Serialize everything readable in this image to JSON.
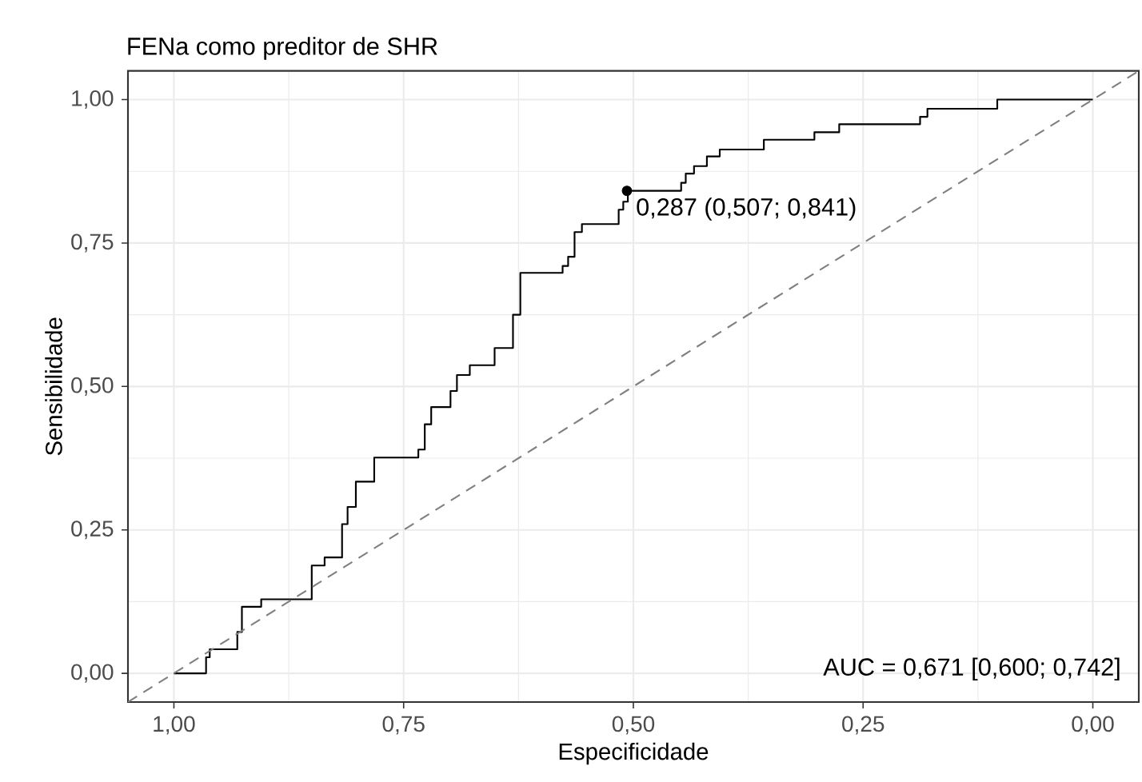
{
  "chart_data": {
    "type": "line",
    "title": "FENa como preditor de SHR",
    "xlabel": "Especificidade",
    "ylabel": "Sensibilidade",
    "xlim": [
      1.05,
      -0.05
    ],
    "ylim": [
      -0.05,
      1.05
    ],
    "xticks": [
      {
        "value": 1,
        "label": "1,00"
      },
      {
        "value": 0.75,
        "label": "0,75"
      },
      {
        "value": 0.5,
        "label": "0,50"
      },
      {
        "value": 0.25,
        "label": "0,25"
      },
      {
        "value": 0,
        "label": "0,00"
      }
    ],
    "yticks": [
      {
        "value": 0,
        "label": "0,00"
      },
      {
        "value": 0.25,
        "label": "0,25"
      },
      {
        "value": 0.5,
        "label": "0,50"
      },
      {
        "value": 0.75,
        "label": "0,75"
      },
      {
        "value": 1,
        "label": "1,00"
      }
    ],
    "grid": true,
    "series": [
      {
        "color": "#000000",
        "x": [
          1,
          0.965,
          0.965,
          0.961,
          0.961,
          0.931,
          0.931,
          0.926,
          0.926,
          0.905,
          0.905,
          0.85,
          0.85,
          0.836,
          0.836,
          0.817,
          0.817,
          0.811,
          0.811,
          0.802,
          0.802,
          0.782,
          0.782,
          0.734,
          0.734,
          0.727,
          0.727,
          0.72,
          0.72,
          0.699,
          0.699,
          0.692,
          0.692,
          0.678,
          0.678,
          0.651,
          0.651,
          0.631,
          0.631,
          0.623,
          0.623,
          0.577,
          0.577,
          0.571,
          0.571,
          0.564,
          0.564,
          0.556,
          0.556,
          0.516,
          0.516,
          0.511,
          0.511,
          0.506,
          0.506,
          0.448,
          0.448,
          0.443,
          0.443,
          0.434,
          0.434,
          0.42,
          0.42,
          0.406,
          0.406,
          0.358,
          0.358,
          0.303,
          0.303,
          0.276,
          0.276,
          0.188,
          0.188,
          0.18,
          0.18,
          0.104,
          0.104,
          0
        ],
        "values": [
          0,
          0,
          0.028,
          0.028,
          0.042,
          0.042,
          0.072,
          0.072,
          0.116,
          0.116,
          0.129,
          0.129,
          0.188,
          0.188,
          0.202,
          0.202,
          0.26,
          0.26,
          0.29,
          0.29,
          0.334,
          0.334,
          0.376,
          0.376,
          0.39,
          0.39,
          0.434,
          0.434,
          0.464,
          0.464,
          0.492,
          0.492,
          0.52,
          0.52,
          0.537,
          0.537,
          0.567,
          0.567,
          0.625,
          0.625,
          0.698,
          0.698,
          0.71,
          0.71,
          0.726,
          0.726,
          0.769,
          0.769,
          0.783,
          0.783,
          0.808,
          0.808,
          0.822,
          0.822,
          0.841,
          0.841,
          0.855,
          0.855,
          0.871,
          0.871,
          0.884,
          0.884,
          0.901,
          0.901,
          0.913,
          0.913,
          0.93,
          0.93,
          0.943,
          0.943,
          0.957,
          0.957,
          0.97,
          0.97,
          0.984,
          0.984,
          1,
          1
        ]
      },
      {
        "color": "#808080",
        "line_style": "dashed",
        "x": [
          1.05,
          -0.05
        ],
        "values": [
          -0.05,
          1.05
        ]
      },
      {
        "type": "scatter",
        "color": "#000000",
        "marker": "circle",
        "x": [
          0.507
        ],
        "values": [
          0.841
        ]
      }
    ],
    "annotations": [
      {
        "text": "0,287 (0,507; 0,841)",
        "x": 0.507,
        "y": 0.841
      },
      "AUC = 0,671 [0,600; 0,742]"
    ]
  }
}
